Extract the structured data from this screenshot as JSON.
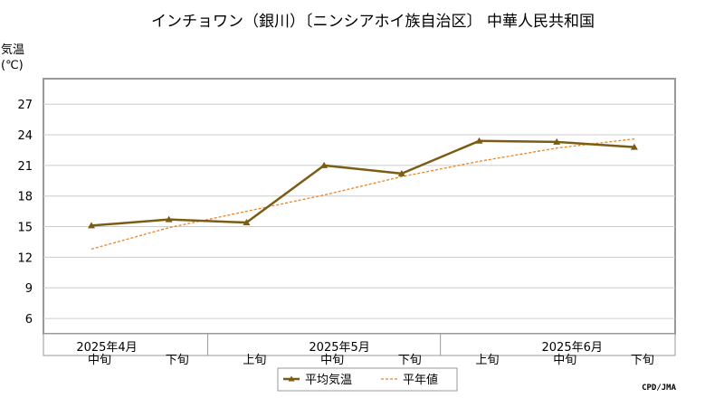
{
  "chart_data": {
    "type": "line",
    "title": "インチョワン（銀川）〔ニンシアホイ族自治区〕 中華人民共和国",
    "ylabel": "気温",
    "yunit": "(℃)",
    "ylim": [
      4.5,
      29.5
    ],
    "yticks": [
      "6",
      "9",
      "12",
      "15",
      "18",
      "21",
      "24",
      "27"
    ],
    "x_tick_labels": [
      "中旬",
      "下旬",
      "上旬",
      "中旬",
      "下旬",
      "上旬",
      "中旬",
      "下旬"
    ],
    "x_month_labels": [
      "2025年4月",
      "2025年5月",
      "2025年6月"
    ],
    "grid": true,
    "legend_position": "bottom",
    "series": [
      {
        "name": "平均気温",
        "style": "solid-marker",
        "color": "#7b5c14",
        "values": [
          15.1,
          15.7,
          15.4,
          21.0,
          20.2,
          23.4,
          23.3,
          22.8
        ]
      },
      {
        "name": "平年値",
        "style": "dashed",
        "color": "#f08020",
        "values": [
          12.8,
          14.9,
          16.5,
          18.1,
          19.9,
          21.4,
          22.7,
          23.6
        ]
      }
    ]
  },
  "credit": "CPD/JMA"
}
